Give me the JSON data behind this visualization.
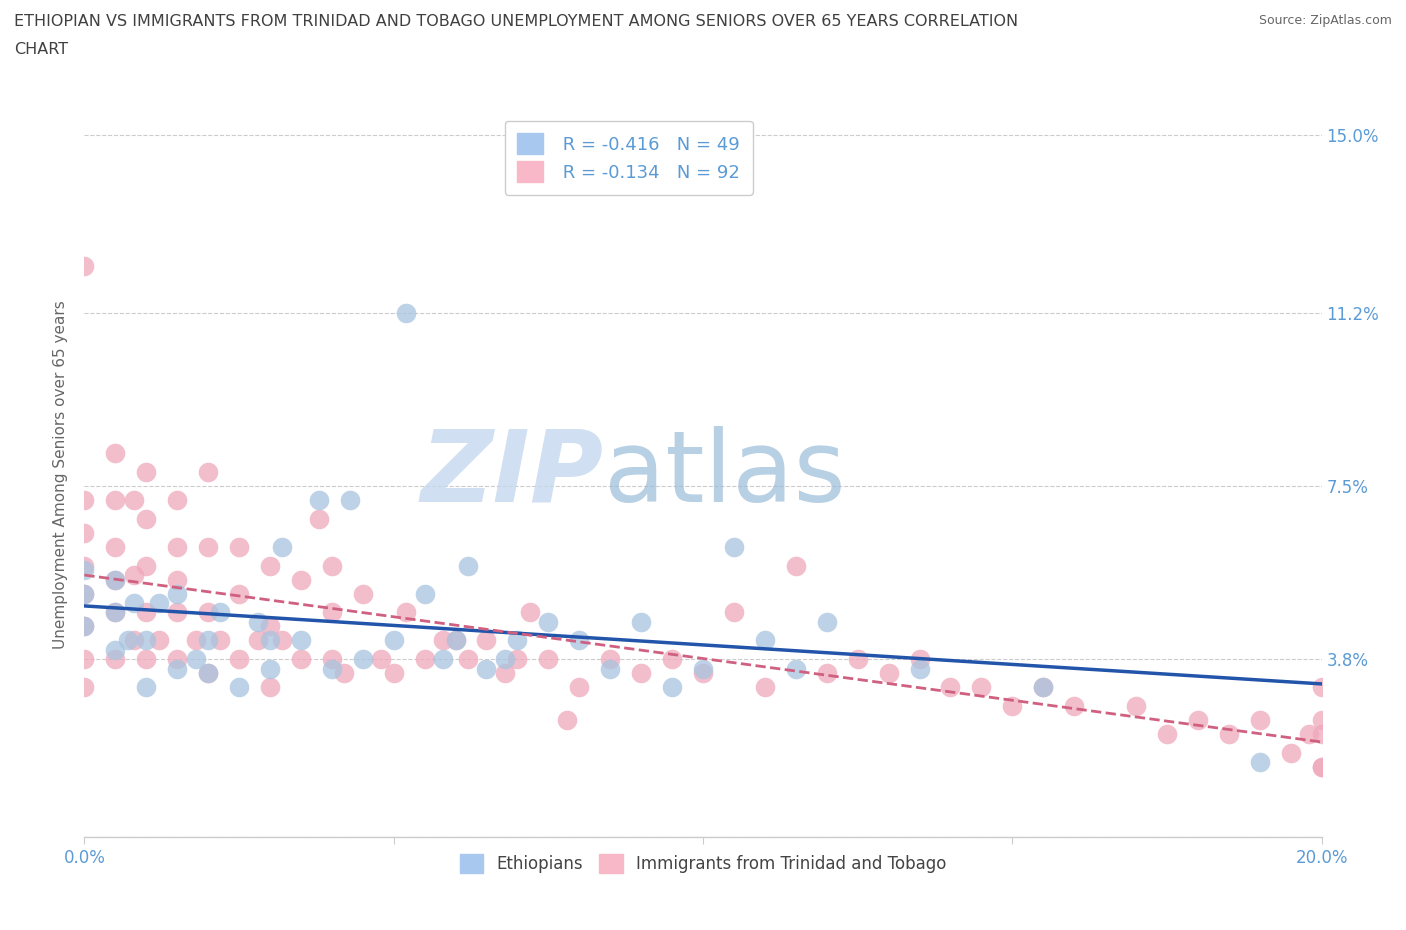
{
  "title_line1": "ETHIOPIAN VS IMMIGRANTS FROM TRINIDAD AND TOBAGO UNEMPLOYMENT AMONG SENIORS OVER 65 YEARS CORRELATION",
  "title_line2": "CHART",
  "source_text": "Source: ZipAtlas.com",
  "ylabel": "Unemployment Among Seniors over 65 years",
  "xlim": [
    0.0,
    0.2
  ],
  "ylim": [
    0.0,
    0.155
  ],
  "xticks": [
    0.0,
    0.05,
    0.1,
    0.15,
    0.2
  ],
  "xticklabels": [
    "0.0%",
    "",
    "",
    "",
    "20.0%"
  ],
  "yticks": [
    0.0,
    0.038,
    0.075,
    0.112,
    0.15
  ],
  "yticklabels": [
    "",
    "3.8%",
    "7.5%",
    "11.2%",
    "15.0%"
  ],
  "watermark_zip": "ZIP",
  "watermark_atlas": "atlas",
  "legend_R1": "-0.416",
  "legend_N1": "49",
  "legend_R2": "-0.134",
  "legend_N2": "92",
  "blue_scatter_color": "#a8c4e0",
  "pink_scatter_color": "#f0a8bc",
  "blue_line_color": "#2255aa",
  "pink_line_color": "#d06080",
  "legend_blue_color": "#a8c8f0",
  "legend_pink_color": "#f8b8c8",
  "label_color": "#5b9bd5",
  "title_color": "#404040",
  "grid_color": "#cccccc",
  "eth_x": [
    0.0,
    0.0,
    0.0,
    0.005,
    0.005,
    0.005,
    0.007,
    0.008,
    0.01,
    0.01,
    0.012,
    0.015,
    0.015,
    0.018,
    0.02,
    0.02,
    0.022,
    0.025,
    0.028,
    0.03,
    0.03,
    0.032,
    0.035,
    0.038,
    0.04,
    0.043,
    0.045,
    0.05,
    0.052,
    0.055,
    0.058,
    0.06,
    0.062,
    0.065,
    0.068,
    0.07,
    0.075,
    0.08,
    0.085,
    0.09,
    0.095,
    0.1,
    0.105,
    0.11,
    0.115,
    0.12,
    0.135,
    0.155,
    0.19
  ],
  "eth_y": [
    0.045,
    0.052,
    0.057,
    0.04,
    0.048,
    0.055,
    0.042,
    0.05,
    0.032,
    0.042,
    0.05,
    0.036,
    0.052,
    0.038,
    0.035,
    0.042,
    0.048,
    0.032,
    0.046,
    0.036,
    0.042,
    0.062,
    0.042,
    0.072,
    0.036,
    0.072,
    0.038,
    0.042,
    0.112,
    0.052,
    0.038,
    0.042,
    0.058,
    0.036,
    0.038,
    0.042,
    0.046,
    0.042,
    0.036,
    0.046,
    0.032,
    0.036,
    0.062,
    0.042,
    0.036,
    0.046,
    0.036,
    0.032,
    0.016
  ],
  "tri_x": [
    0.0,
    0.0,
    0.0,
    0.0,
    0.0,
    0.0,
    0.0,
    0.0,
    0.005,
    0.005,
    0.005,
    0.005,
    0.005,
    0.005,
    0.008,
    0.008,
    0.008,
    0.01,
    0.01,
    0.01,
    0.01,
    0.01,
    0.012,
    0.015,
    0.015,
    0.015,
    0.015,
    0.015,
    0.018,
    0.02,
    0.02,
    0.02,
    0.02,
    0.022,
    0.025,
    0.025,
    0.025,
    0.028,
    0.03,
    0.03,
    0.03,
    0.032,
    0.035,
    0.035,
    0.038,
    0.04,
    0.04,
    0.04,
    0.042,
    0.045,
    0.048,
    0.05,
    0.052,
    0.055,
    0.058,
    0.06,
    0.062,
    0.065,
    0.068,
    0.07,
    0.072,
    0.075,
    0.078,
    0.08,
    0.085,
    0.09,
    0.095,
    0.1,
    0.105,
    0.11,
    0.115,
    0.12,
    0.125,
    0.13,
    0.135,
    0.14,
    0.145,
    0.15,
    0.155,
    0.16,
    0.17,
    0.175,
    0.18,
    0.185,
    0.19,
    0.195,
    0.198,
    0.2,
    0.2,
    0.2,
    0.2,
    0.2
  ],
  "tri_y": [
    0.032,
    0.038,
    0.045,
    0.052,
    0.058,
    0.065,
    0.072,
    0.122,
    0.038,
    0.048,
    0.055,
    0.062,
    0.072,
    0.082,
    0.042,
    0.056,
    0.072,
    0.038,
    0.048,
    0.058,
    0.068,
    0.078,
    0.042,
    0.038,
    0.048,
    0.055,
    0.062,
    0.072,
    0.042,
    0.035,
    0.048,
    0.062,
    0.078,
    0.042,
    0.038,
    0.052,
    0.062,
    0.042,
    0.032,
    0.045,
    0.058,
    0.042,
    0.038,
    0.055,
    0.068,
    0.038,
    0.048,
    0.058,
    0.035,
    0.052,
    0.038,
    0.035,
    0.048,
    0.038,
    0.042,
    0.042,
    0.038,
    0.042,
    0.035,
    0.038,
    0.048,
    0.038,
    0.025,
    0.032,
    0.038,
    0.035,
    0.038,
    0.035,
    0.048,
    0.032,
    0.058,
    0.035,
    0.038,
    0.035,
    0.038,
    0.032,
    0.032,
    0.028,
    0.032,
    0.028,
    0.028,
    0.022,
    0.025,
    0.022,
    0.025,
    0.018,
    0.022,
    0.015,
    0.022,
    0.025,
    0.032,
    0.015
  ]
}
